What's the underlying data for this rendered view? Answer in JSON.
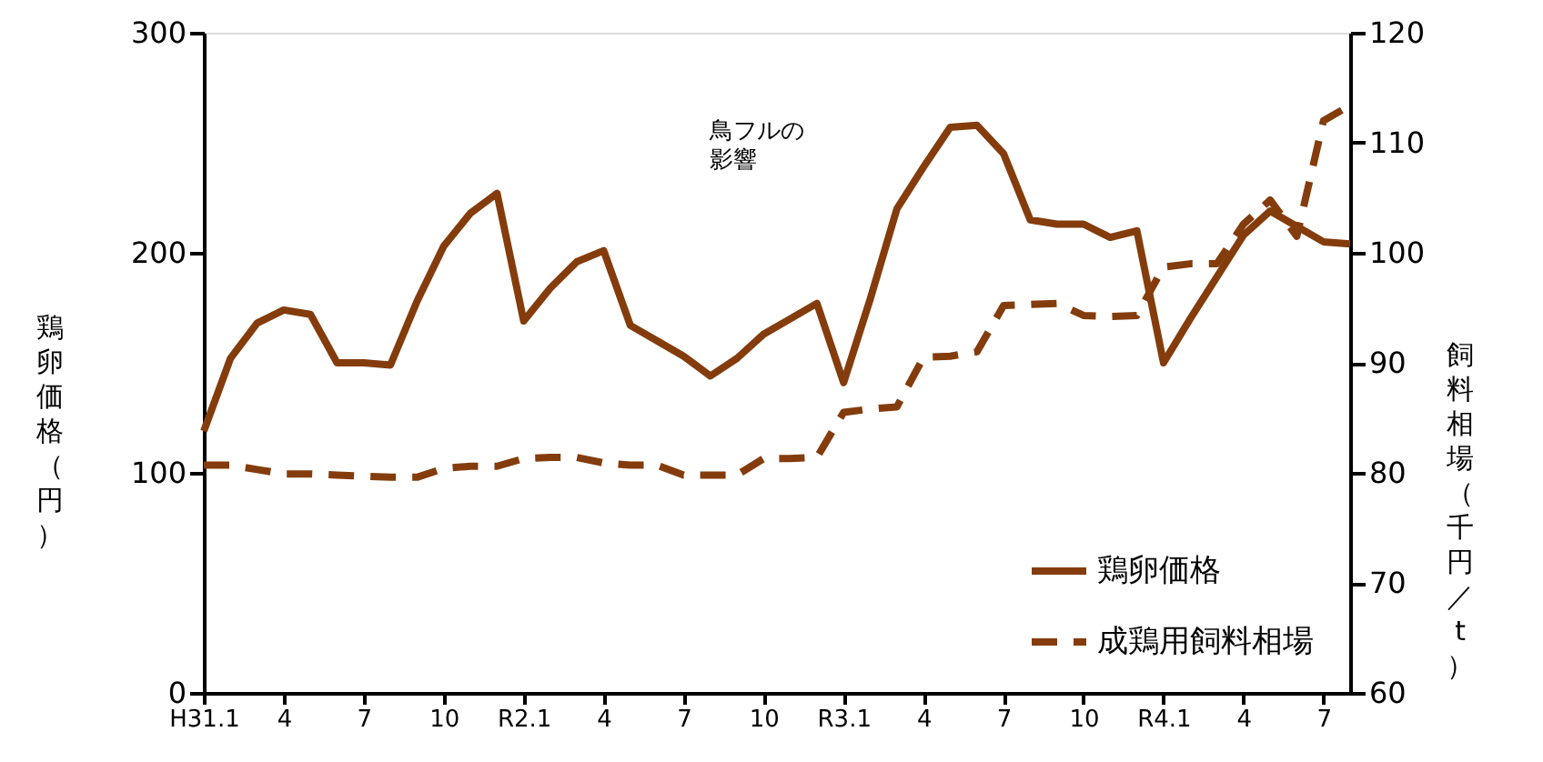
{
  "chart_data": {
    "type": "line",
    "categories": [
      "H31.1",
      null,
      null,
      "4",
      null,
      null,
      "7",
      null,
      null,
      "10",
      null,
      null,
      "R2.1",
      null,
      null,
      "4",
      null,
      null,
      "7",
      null,
      null,
      "10",
      null,
      null,
      "R3.1",
      null,
      null,
      "4",
      null,
      null,
      "7",
      null,
      null,
      "10",
      null,
      null,
      "R4.1",
      null,
      null,
      "4",
      null,
      null,
      "7",
      null
    ],
    "series": [
      {
        "name": "鶏卵価格",
        "color": "#843c0c",
        "line_style": "solid",
        "values": [
          119,
          152,
          168,
          174,
          172,
          150,
          150,
          149,
          178,
          203,
          218,
          227,
          169,
          184,
          196,
          201,
          167,
          160,
          153,
          144,
          152,
          163,
          170,
          177,
          141,
          179,
          220,
          239,
          257,
          258,
          245,
          215,
          213,
          213,
          207,
          210,
          150,
          170,
          189,
          208,
          219,
          212,
          205,
          204
        ]
      },
      {
        "name": "成鶏用飼料相場",
        "color": "#843c0c",
        "line_style": "dashed",
        "axis": "y2",
        "values": [
          80.7,
          80.7,
          80.3,
          79.9,
          79.9,
          79.8,
          79.7,
          79.6,
          79.6,
          80.4,
          80.6,
          80.6,
          81.3,
          81.4,
          81.4,
          80.9,
          80.7,
          80.7,
          79.8,
          79.8,
          79.8,
          81.3,
          81.3,
          81.4,
          85.5,
          85.8,
          86.0,
          90.5,
          90.6,
          91.0,
          95.2,
          95.3,
          95.4,
          94.3,
          94.2,
          94.3,
          98.7,
          99.0,
          99.0,
          102.6,
          104.8,
          101.5,
          112.0,
          113.4
        ]
      }
    ],
    "ylabel": "鶏卵価格（円）",
    "y2label": "飼料相場（千円／t）",
    "ylim": [
      0,
      300
    ],
    "yticks": [
      0,
      100,
      200,
      300
    ],
    "y2lim": [
      60,
      120
    ],
    "y2ticks": [
      60,
      70,
      80,
      90,
      100,
      110,
      120
    ],
    "annotations": [
      "鳥フルの影響"
    ],
    "legend": "bottom right",
    "grid": false
  }
}
